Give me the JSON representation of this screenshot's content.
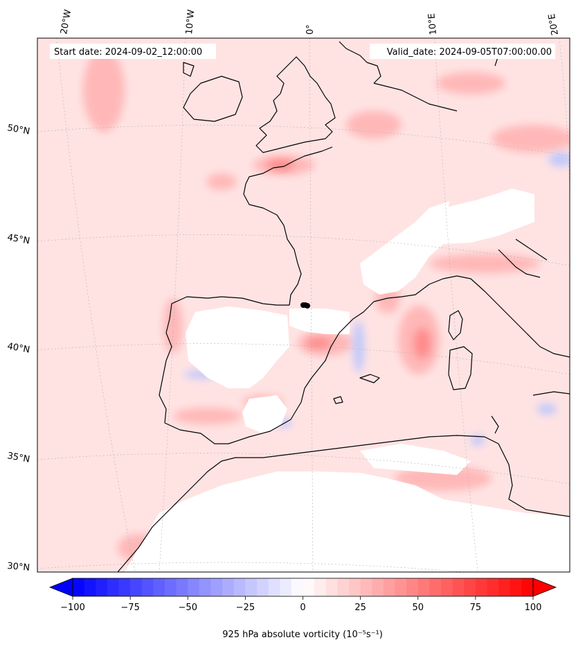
{
  "header": {
    "start_date": "Start date: 2024-09-02_12:00:00",
    "valid_date": "Valid_date: 2024-09-05T07:00:00.00"
  },
  "longitude_labels": [
    "20°W",
    "10°W",
    "0°",
    "10°E",
    "20°E"
  ],
  "latitude_labels": [
    "50°N",
    "45°N",
    "40°N",
    "35°N",
    "30°N"
  ],
  "colorbar": {
    "label": "925 hPa absolute vorticity (10⁻⁵s⁻¹)",
    "min": -100,
    "max": 100,
    "ticks": [
      "−100",
      "−75",
      "−50",
      "−25",
      "0",
      "25",
      "50",
      "75",
      "100"
    ],
    "tick_values": [
      -100,
      -75,
      -50,
      -25,
      0,
      25,
      50,
      75,
      100
    ],
    "levels": 40,
    "cmap": "bwr",
    "extend": "both",
    "color_min": "#0000ff",
    "color_mid": "#ffffff",
    "color_max": "#ff0000"
  },
  "map": {
    "region": "Western Europe and Western Mediterranean",
    "field": "925 hPa absolute vorticity",
    "masked_color": "#ffffff",
    "background_tint": "#ffe6e6",
    "coastline_color": "#000000"
  }
}
